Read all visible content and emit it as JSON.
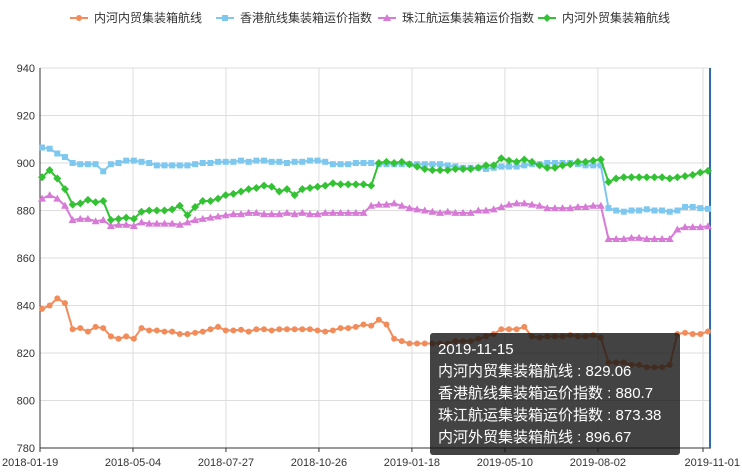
{
  "chart_data": {
    "type": "line",
    "y_range": [
      780,
      940
    ],
    "y_ticks": [
      "780",
      "800",
      "820",
      "840",
      "860",
      "880",
      "900",
      "920",
      "940"
    ],
    "x_tick_labels": [
      "2018-01-19",
      "2018-05-04",
      "2018-07-27",
      "2018-10-26",
      "2019-01-18",
      "2019-05-10",
      "2019-08-02",
      "2019-11-01"
    ],
    "grid": true,
    "legend_position": "top",
    "series": [
      {
        "name": "内河内贸集装箱航线",
        "color": "#f28c5a",
        "marker": "circle",
        "values": [
          838.6,
          840.0,
          843.0,
          841.0,
          830.0,
          830.5,
          829.0,
          831.0,
          830.5,
          827.0,
          826.0,
          827.0,
          826.0,
          830.5,
          829.5,
          829.5,
          829.0,
          829.0,
          828.0,
          828.0,
          828.5,
          829.0,
          830.0,
          831.0,
          829.5,
          829.5,
          829.8,
          829.0,
          830.0,
          830.0,
          829.5,
          830.0,
          830.0,
          830.0,
          830.0,
          830.0,
          829.5,
          829.0,
          829.5,
          830.5,
          830.5,
          831.0,
          832.0,
          831.5,
          834.0,
          832.0,
          826.0,
          825.0,
          824.0,
          824.0,
          824.0,
          824.0,
          824.0,
          824.0,
          825.0,
          825.0,
          825.0,
          826.0,
          827.0,
          828.0,
          830.0,
          830.0,
          830.0,
          831.0,
          827.0,
          826.5,
          827.0,
          827.0,
          827.0,
          827.5,
          827.0,
          827.0,
          827.5,
          826.5,
          816.0,
          816.0,
          816.0,
          815.0,
          815.0,
          814.0,
          814.0,
          814.0,
          815.0,
          828.0,
          828.5,
          828.0,
          828.0,
          829.06
        ]
      },
      {
        "name": "香港航线集装箱运价指数",
        "color": "#7ec8f0",
        "marker": "square",
        "values": [
          906.5,
          906.0,
          904.0,
          902.5,
          900.0,
          899.5,
          899.5,
          899.5,
          896.5,
          899.5,
          900.0,
          901.0,
          901.0,
          900.5,
          900.0,
          899.0,
          899.0,
          899.0,
          899.0,
          899.0,
          899.5,
          900.0,
          900.0,
          900.5,
          900.5,
          900.5,
          901.0,
          900.5,
          901.0,
          901.0,
          900.5,
          900.5,
          900.0,
          900.5,
          900.5,
          901.0,
          901.0,
          900.5,
          899.5,
          899.5,
          899.5,
          900.0,
          900.0,
          900.0,
          899.5,
          899.5,
          899.5,
          899.5,
          899.5,
          899.5,
          899.5,
          899.5,
          899.5,
          899.0,
          898.5,
          898.0,
          898.0,
          898.0,
          897.5,
          898.0,
          898.5,
          898.5,
          898.5,
          899.0,
          899.5,
          899.5,
          900.0,
          900.0,
          900.0,
          900.0,
          899.5,
          899.0,
          899.0,
          899.0,
          881.0,
          880.0,
          879.5,
          880.0,
          880.0,
          880.5,
          880.0,
          880.0,
          879.5,
          880.0,
          881.5,
          881.5,
          881.0,
          880.7
        ]
      },
      {
        "name": "珠江航运集装箱运价指数",
        "color": "#d77bd7",
        "marker": "triangle",
        "values": [
          885.0,
          886.5,
          885.0,
          882.0,
          876.0,
          876.5,
          876.5,
          875.5,
          876.0,
          873.5,
          874.0,
          874.0,
          873.5,
          875.0,
          874.5,
          874.5,
          874.5,
          874.5,
          874.0,
          875.0,
          876.0,
          876.5,
          877.0,
          877.5,
          878.0,
          878.5,
          878.5,
          879.0,
          879.0,
          878.5,
          878.5,
          878.5,
          879.0,
          878.5,
          879.0,
          878.5,
          878.5,
          879.0,
          879.0,
          879.0,
          879.0,
          879.0,
          879.0,
          882.0,
          882.5,
          882.5,
          883.0,
          882.0,
          881.0,
          880.5,
          880.0,
          879.5,
          879.0,
          879.5,
          879.0,
          879.0,
          879.0,
          880.0,
          880.0,
          880.5,
          881.5,
          882.5,
          883.0,
          883.0,
          882.5,
          882.0,
          881.0,
          881.0,
          881.0,
          881.0,
          881.5,
          881.5,
          882.0,
          882.0,
          868.0,
          868.0,
          868.0,
          868.5,
          868.5,
          868.0,
          868.0,
          868.0,
          868.0,
          872.0,
          873.0,
          873.0,
          873.0,
          873.38
        ]
      },
      {
        "name": "内河外贸集装箱航线",
        "color": "#33c233",
        "marker": "diamond",
        "values": [
          894.0,
          897.0,
          893.5,
          889.0,
          882.5,
          883.0,
          884.5,
          883.5,
          884.0,
          876.0,
          876.5,
          877.0,
          876.5,
          879.5,
          880.0,
          880.0,
          880.0,
          880.5,
          882.0,
          878.0,
          881.5,
          884.0,
          884.0,
          885.0,
          886.5,
          887.0,
          888.0,
          889.0,
          889.5,
          890.5,
          890.0,
          888.0,
          889.0,
          886.5,
          889.0,
          889.5,
          890.0,
          890.5,
          891.5,
          891.0,
          891.0,
          891.0,
          891.0,
          890.5,
          900.0,
          900.5,
          900.0,
          900.5,
          899.5,
          898.5,
          897.5,
          897.0,
          897.0,
          897.0,
          897.5,
          897.5,
          897.5,
          898.0,
          899.0,
          899.0,
          902.0,
          901.0,
          900.5,
          901.5,
          900.5,
          899.0,
          898.0,
          898.0,
          899.0,
          899.5,
          900.5,
          900.5,
          901.0,
          901.5,
          892.0,
          893.5,
          894.0,
          894.0,
          894.0,
          894.0,
          894.0,
          894.0,
          893.5,
          894.0,
          894.5,
          895.0,
          896.0,
          896.67
        ]
      }
    ]
  },
  "tooltip": {
    "date": "2019-11-15",
    "lines": [
      "内河内贸集装箱航线 : 829.06",
      "香港航线集装箱运价指数 : 880.7",
      "珠江航运集装箱运价指数 : 873.38",
      "内河外贸集装箱航线 : 896.67"
    ]
  }
}
